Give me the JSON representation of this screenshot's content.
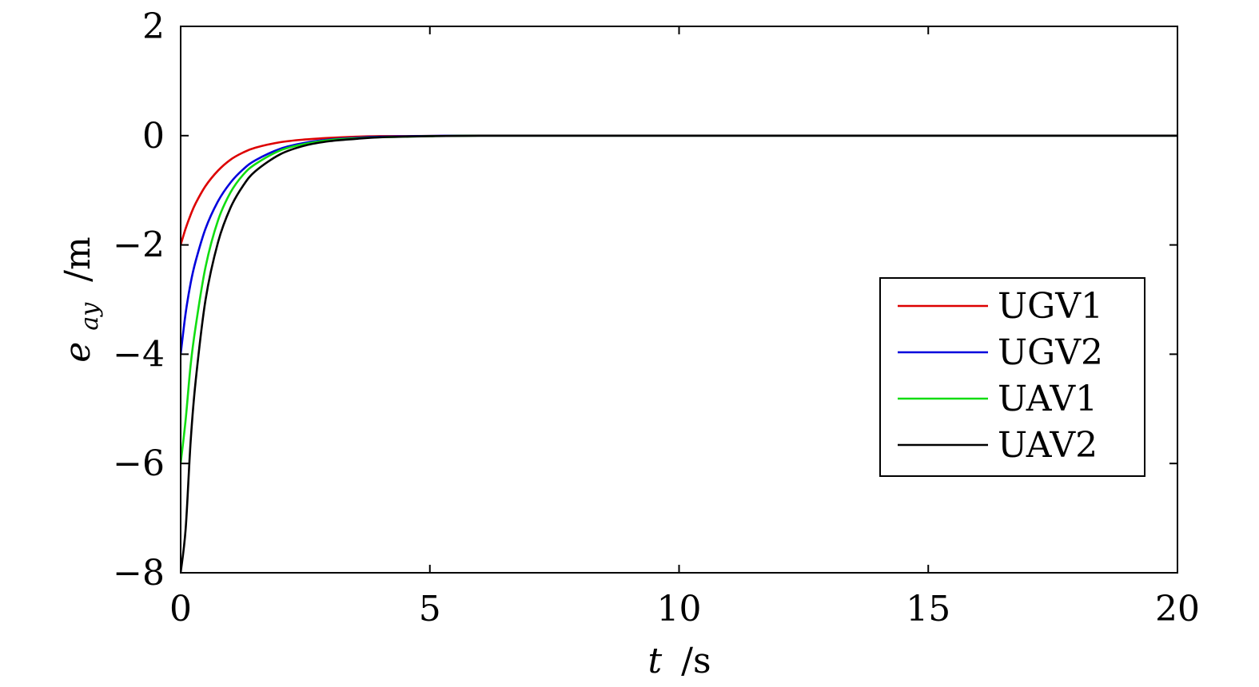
{
  "chart_data": {
    "type": "line",
    "title": "",
    "xlabel": {
      "var": "t",
      "unit": "/s"
    },
    "ylabel": {
      "var": "e",
      "sub": "ay",
      "unit": "/m"
    },
    "xlim": [
      0,
      20
    ],
    "ylim": [
      -8,
      2
    ],
    "xticks": [
      0,
      5,
      10,
      15,
      20
    ],
    "yticks": [
      -8,
      -6,
      -4,
      -2,
      0,
      2
    ],
    "xtick_labels": [
      "0",
      "5",
      "10",
      "15",
      "20"
    ],
    "ytick_labels": [
      "−8",
      "−6",
      "−4",
      "−2",
      "0",
      "2"
    ],
    "grid": false,
    "legend_position": "right",
    "x": [
      0,
      0.1,
      0.2,
      0.3,
      0.5,
      0.75,
      1,
      1.25,
      1.5,
      2,
      2.5,
      3,
      3.5,
      4,
      5,
      6,
      8,
      10,
      15,
      20
    ],
    "series": [
      {
        "name": "UGV1",
        "color": "#dd0000",
        "values": [
          -2,
          -1.7,
          -1.45,
          -1.24,
          -0.92,
          -0.64,
          -0.44,
          -0.31,
          -0.22,
          -0.12,
          -0.07,
          -0.04,
          -0.02,
          -0.01,
          -0.005,
          0,
          0,
          0,
          0,
          0
        ]
      },
      {
        "name": "UGV2",
        "color": "#0000dd",
        "values": [
          -4,
          -3.25,
          -2.7,
          -2.3,
          -1.7,
          -1.2,
          -0.86,
          -0.62,
          -0.45,
          -0.24,
          -0.13,
          -0.07,
          -0.04,
          -0.02,
          -0.005,
          0,
          0,
          0,
          0,
          0
        ]
      },
      {
        "name": "UAV1",
        "color": "#11dd11",
        "values": [
          -6,
          -5.2,
          -4.2,
          -3.5,
          -2.4,
          -1.55,
          -1.04,
          -0.72,
          -0.52,
          -0.27,
          -0.15,
          -0.08,
          -0.05,
          -0.03,
          -0.01,
          0,
          0,
          0,
          0,
          0
        ]
      },
      {
        "name": "UAV2",
        "color": "#000000",
        "values": [
          -8,
          -7.2,
          -5.6,
          -4.5,
          -3.0,
          -1.95,
          -1.32,
          -0.92,
          -0.65,
          -0.34,
          -0.18,
          -0.1,
          -0.06,
          -0.03,
          -0.01,
          0,
          0,
          0,
          0,
          0
        ]
      }
    ]
  }
}
